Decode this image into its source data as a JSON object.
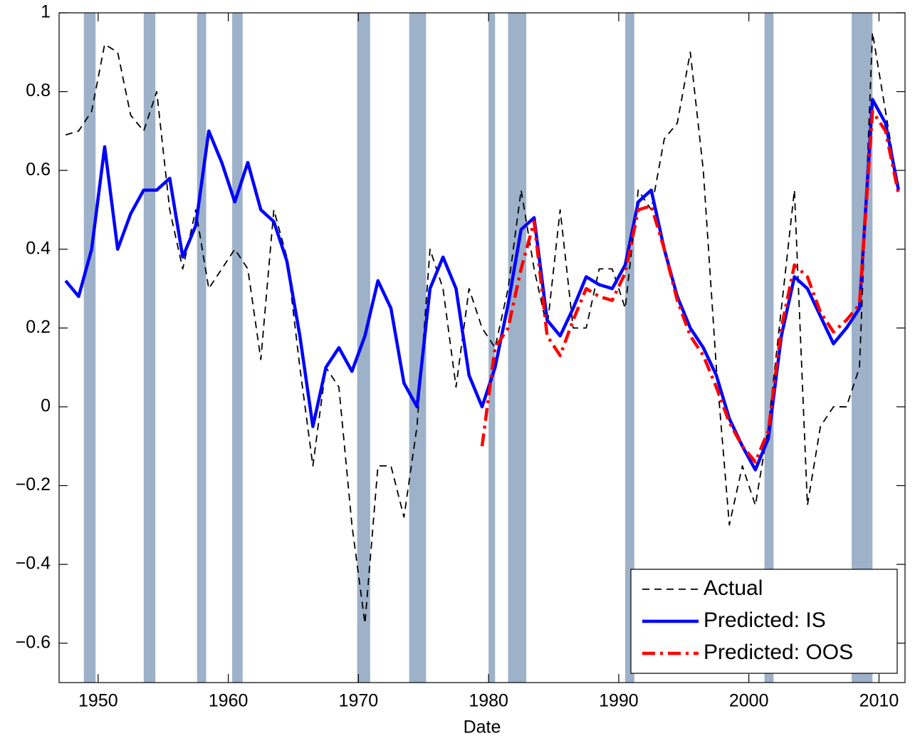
{
  "chart_data": {
    "type": "line",
    "xlabel": "Date",
    "xlim": [
      1947,
      2012
    ],
    "ylim": [
      -0.7,
      1
    ],
    "xticks": [
      1950,
      1960,
      1970,
      1980,
      1990,
      2000,
      2010
    ],
    "yticks": [
      {
        "value": -0.6,
        "label": "−0.6"
      },
      {
        "value": -0.4,
        "label": "−0.4"
      },
      {
        "value": -0.2,
        "label": "−0.2"
      },
      0,
      0.2,
      0.4,
      0.6,
      0.8,
      1
    ],
    "legend": "lower right",
    "shaded_color": "#9db1c9",
    "shaded_periods": [
      [
        1948.9,
        1949.8
      ],
      [
        1953.5,
        1954.4
      ],
      [
        1957.6,
        1958.3
      ],
      [
        1960.3,
        1961.1
      ],
      [
        1969.9,
        1970.9
      ],
      [
        1973.9,
        1975.2
      ],
      [
        1980.0,
        1980.5
      ],
      [
        1981.5,
        1982.9
      ],
      [
        1990.5,
        1991.2
      ],
      [
        2001.2,
        2001.9
      ],
      [
        2007.9,
        2009.5
      ]
    ],
    "x": [
      1947.5,
      1948.5,
      1949.5,
      1950.5,
      1951.5,
      1952.5,
      1953.5,
      1954.5,
      1955.5,
      1956.5,
      1957.5,
      1958.5,
      1959.5,
      1960.5,
      1961.5,
      1962.5,
      1963.5,
      1964.5,
      1965.5,
      1966.5,
      1967.5,
      1968.5,
      1969.5,
      1970.5,
      1971.5,
      1972.5,
      1973.5,
      1974.5,
      1975.5,
      1976.5,
      1977.5,
      1978.5,
      1979.5,
      1980.5,
      1981.5,
      1982.5,
      1983.5,
      1984.5,
      1985.5,
      1986.5,
      1987.5,
      1988.5,
      1989.5,
      1990.5,
      1991.5,
      1992.5,
      1993.5,
      1994.5,
      1995.5,
      1996.5,
      1997.5,
      1998.5,
      1999.5,
      2000.5,
      2001.5,
      2002.5,
      2003.5,
      2004.5,
      2005.5,
      2006.5,
      2007.5,
      2008.5,
      2009.5,
      2010.5,
      2011.5
    ],
    "series": [
      {
        "name": "Actual",
        "color": "#000000",
        "style": "dashed",
        "values": [
          0.69,
          0.7,
          0.75,
          0.92,
          0.9,
          0.74,
          0.7,
          0.8,
          0.5,
          0.35,
          0.5,
          0.3,
          0.35,
          0.4,
          0.35,
          0.12,
          0.5,
          0.38,
          0.1,
          -0.15,
          0.1,
          0.05,
          -0.3,
          -0.55,
          -0.15,
          -0.15,
          -0.28,
          -0.05,
          0.4,
          0.3,
          0.05,
          0.3,
          0.2,
          0.15,
          0.3,
          0.55,
          0.35,
          0.2,
          0.5,
          0.2,
          0.2,
          0.35,
          0.35,
          0.25,
          0.55,
          0.5,
          0.68,
          0.72,
          0.9,
          0.6,
          0.1,
          -0.3,
          -0.15,
          -0.25,
          -0.05,
          0.25,
          0.55,
          -0.25,
          -0.05,
          0.0,
          0.0,
          0.1,
          0.95,
          0.75,
          0.55
        ]
      },
      {
        "name": "Predicted: IS",
        "color": "#0000ff",
        "style": "solid",
        "values": [
          0.32,
          0.28,
          0.4,
          0.66,
          0.4,
          0.49,
          0.55,
          0.55,
          0.58,
          0.38,
          0.46,
          0.7,
          0.62,
          0.52,
          0.62,
          0.5,
          0.47,
          0.37,
          0.18,
          -0.05,
          0.1,
          0.15,
          0.09,
          0.18,
          0.32,
          0.25,
          0.06,
          0.0,
          0.3,
          0.38,
          0.3,
          0.08,
          0.0,
          0.1,
          0.26,
          0.45,
          0.48,
          0.22,
          0.18,
          0.25,
          0.33,
          0.31,
          0.3,
          0.36,
          0.52,
          0.55,
          0.4,
          0.28,
          0.2,
          0.15,
          0.08,
          -0.03,
          -0.1,
          -0.16,
          -0.08,
          0.18,
          0.33,
          0.3,
          0.23,
          0.16,
          0.2,
          0.25,
          0.78,
          0.72,
          0.55
        ]
      },
      {
        "name": "Predicted: OOS",
        "color": "#ff0000",
        "style": "dashdot",
        "values": [
          null,
          null,
          null,
          null,
          null,
          null,
          null,
          null,
          null,
          null,
          null,
          null,
          null,
          null,
          null,
          null,
          null,
          null,
          null,
          null,
          null,
          null,
          null,
          null,
          null,
          null,
          null,
          null,
          null,
          null,
          null,
          null,
          -0.1,
          0.15,
          0.2,
          0.35,
          0.47,
          0.18,
          0.13,
          0.22,
          0.3,
          0.28,
          0.27,
          0.34,
          0.5,
          0.51,
          0.4,
          0.27,
          0.18,
          0.13,
          0.05,
          -0.04,
          -0.1,
          -0.14,
          -0.06,
          0.2,
          0.36,
          0.33,
          0.24,
          0.19,
          0.22,
          0.26,
          0.75,
          0.7,
          0.54
        ]
      }
    ]
  }
}
